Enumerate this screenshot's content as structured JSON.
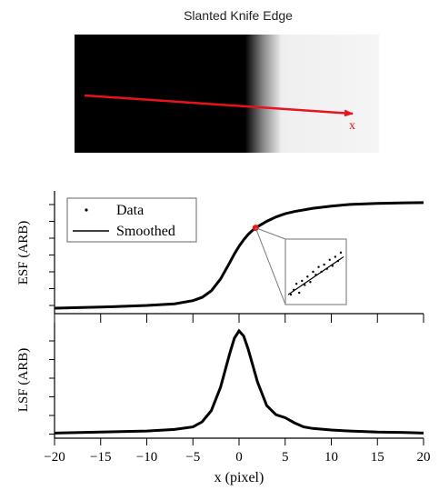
{
  "knife_edge": {
    "title": "Slanted Knife Edge",
    "arrow_label": "x",
    "arrow_color": "#e8141b",
    "dark_color": "#000000",
    "light_color": "#f5f5f5"
  },
  "chart_data": [
    {
      "type": "line",
      "panel": "ESF",
      "ylabel": "ESF (ARB)",
      "xlim": [
        -20,
        20
      ],
      "ylim": [
        -0.05,
        1.08
      ],
      "legend": {
        "placement": "top-left",
        "entries": [
          {
            "label": "Data",
            "marker": "dot"
          },
          {
            "label": "Smoothed",
            "marker": "line"
          }
        ]
      },
      "series": [
        {
          "style": "line",
          "x": [
            -20,
            -15,
            -10,
            -7,
            -5,
            -4,
            -3,
            -2,
            -1,
            -0.5,
            0,
            0.5,
            1,
            1.5,
            2,
            3,
            4,
            5,
            6,
            8,
            10,
            12,
            15,
            18,
            20
          ],
          "y": [
            0,
            0.01,
            0.025,
            0.04,
            0.07,
            0.1,
            0.16,
            0.27,
            0.42,
            0.5,
            0.57,
            0.63,
            0.68,
            0.72,
            0.75,
            0.8,
            0.84,
            0.87,
            0.89,
            0.92,
            0.94,
            0.955,
            0.965,
            0.97,
            0.972
          ]
        }
      ],
      "highlight": {
        "x": 1.8,
        "y": 0.74,
        "color": "#e8141b"
      },
      "inset": {
        "points": [
          [
            0.05,
            0.12
          ],
          [
            0.1,
            0.2
          ],
          [
            0.15,
            0.3
          ],
          [
            0.2,
            0.15
          ],
          [
            0.25,
            0.35
          ],
          [
            0.3,
            0.28
          ],
          [
            0.35,
            0.42
          ],
          [
            0.4,
            0.33
          ],
          [
            0.45,
            0.5
          ],
          [
            0.5,
            0.45
          ],
          [
            0.55,
            0.58
          ],
          [
            0.6,
            0.5
          ],
          [
            0.65,
            0.62
          ],
          [
            0.7,
            0.55
          ],
          [
            0.75,
            0.7
          ],
          [
            0.8,
            0.6
          ],
          [
            0.85,
            0.75
          ],
          [
            0.9,
            0.68
          ],
          [
            0.95,
            0.82
          ]
        ],
        "fit": [
          [
            0.0,
            0.12
          ],
          [
            1.0,
            0.75
          ]
        ]
      }
    },
    {
      "type": "line",
      "panel": "LSF",
      "ylabel": "LSF (ARB)",
      "xlabel": "x (pixel)",
      "xlim": [
        -20,
        20
      ],
      "ylim": [
        -0.05,
        1.08
      ],
      "xticks": [
        -20,
        -15,
        -10,
        -5,
        0,
        5,
        10,
        15,
        20
      ],
      "series": [
        {
          "style": "line",
          "x": [
            -20,
            -15,
            -10,
            -7,
            -5,
            -4,
            -3,
            -2,
            -1,
            -0.5,
            0,
            0.5,
            1,
            2,
            3,
            4,
            5,
            6,
            7,
            8,
            10,
            12,
            15,
            18,
            20
          ],
          "y": [
            0.0,
            0.01,
            0.02,
            0.035,
            0.06,
            0.11,
            0.22,
            0.45,
            0.78,
            0.93,
            1.0,
            0.95,
            0.82,
            0.5,
            0.27,
            0.18,
            0.15,
            0.1,
            0.06,
            0.045,
            0.03,
            0.02,
            0.01,
            0.005,
            0.0
          ]
        }
      ]
    }
  ]
}
